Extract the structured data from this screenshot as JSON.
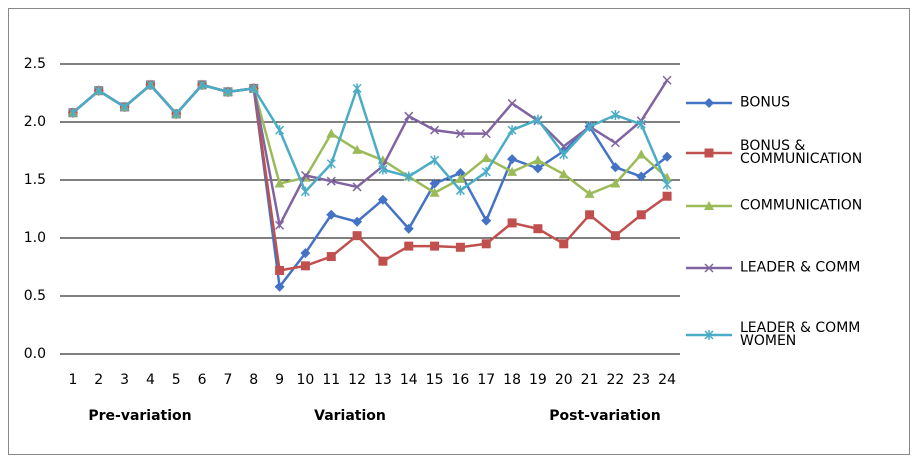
{
  "chart_data": {
    "type": "line",
    "categories": [
      1,
      2,
      3,
      4,
      5,
      6,
      7,
      8,
      9,
      10,
      11,
      12,
      13,
      14,
      15,
      16,
      17,
      18,
      19,
      20,
      21,
      22,
      23,
      24
    ],
    "series": [
      {
        "name": "BONUS",
        "color": "#4472c4",
        "marker": "diamond",
        "values": [
          2.08,
          2.27,
          2.13,
          2.32,
          2.07,
          2.32,
          2.26,
          2.29,
          0.58,
          0.87,
          1.2,
          1.14,
          1.33,
          1.08,
          1.47,
          1.56,
          1.15,
          1.68,
          1.6,
          1.75,
          1.96,
          1.61,
          1.53,
          1.7
        ]
      },
      {
        "name": "BONUS & COMMUNICATION",
        "color": "#c0504d",
        "marker": "square",
        "values": [
          2.08,
          2.27,
          2.13,
          2.32,
          2.07,
          2.32,
          2.26,
          2.29,
          0.72,
          0.76,
          0.84,
          1.02,
          0.8,
          0.93,
          0.93,
          0.92,
          0.95,
          1.13,
          1.08,
          0.95,
          1.2,
          1.02,
          1.2,
          1.36
        ]
      },
      {
        "name": "COMMUNICATION",
        "color": "#9bbb59",
        "marker": "triangle",
        "values": [
          2.08,
          2.27,
          2.13,
          2.32,
          2.07,
          2.32,
          2.26,
          2.29,
          1.47,
          1.52,
          1.9,
          1.76,
          1.67,
          1.53,
          1.39,
          1.51,
          1.69,
          1.57,
          1.67,
          1.55,
          1.38,
          1.47,
          1.72,
          1.52
        ]
      },
      {
        "name": "LEADER & COMM",
        "color": "#8064a2",
        "marker": "x",
        "values": [
          2.08,
          2.27,
          2.13,
          2.32,
          2.07,
          2.32,
          2.26,
          2.29,
          1.11,
          1.54,
          1.49,
          1.44,
          1.62,
          2.05,
          1.93,
          1.9,
          1.9,
          2.16,
          2.01,
          1.79,
          1.96,
          1.82,
          2.01,
          2.36
        ]
      },
      {
        "name": "LEADER & COMM WOMEN",
        "color": "#4bacc6",
        "marker": "star",
        "values": [
          2.08,
          2.27,
          2.13,
          2.32,
          2.07,
          2.32,
          2.26,
          2.29,
          1.93,
          1.4,
          1.64,
          2.29,
          1.59,
          1.53,
          1.67,
          1.41,
          1.57,
          1.93,
          2.02,
          1.72,
          1.96,
          2.06,
          1.98,
          1.46
        ]
      }
    ],
    "groups": [
      "Pre-variation",
      "Variation",
      "Post-variation"
    ],
    "ylim": [
      0,
      2.5
    ],
    "yticks": [
      {
        "value": 0,
        "label": "0.0"
      },
      0.5,
      {
        "value": 1,
        "label": "1.0"
      },
      1.5,
      {
        "value": 2,
        "label": "2.0"
      },
      2.5
    ],
    "grid": true,
    "legend": "right"
  }
}
